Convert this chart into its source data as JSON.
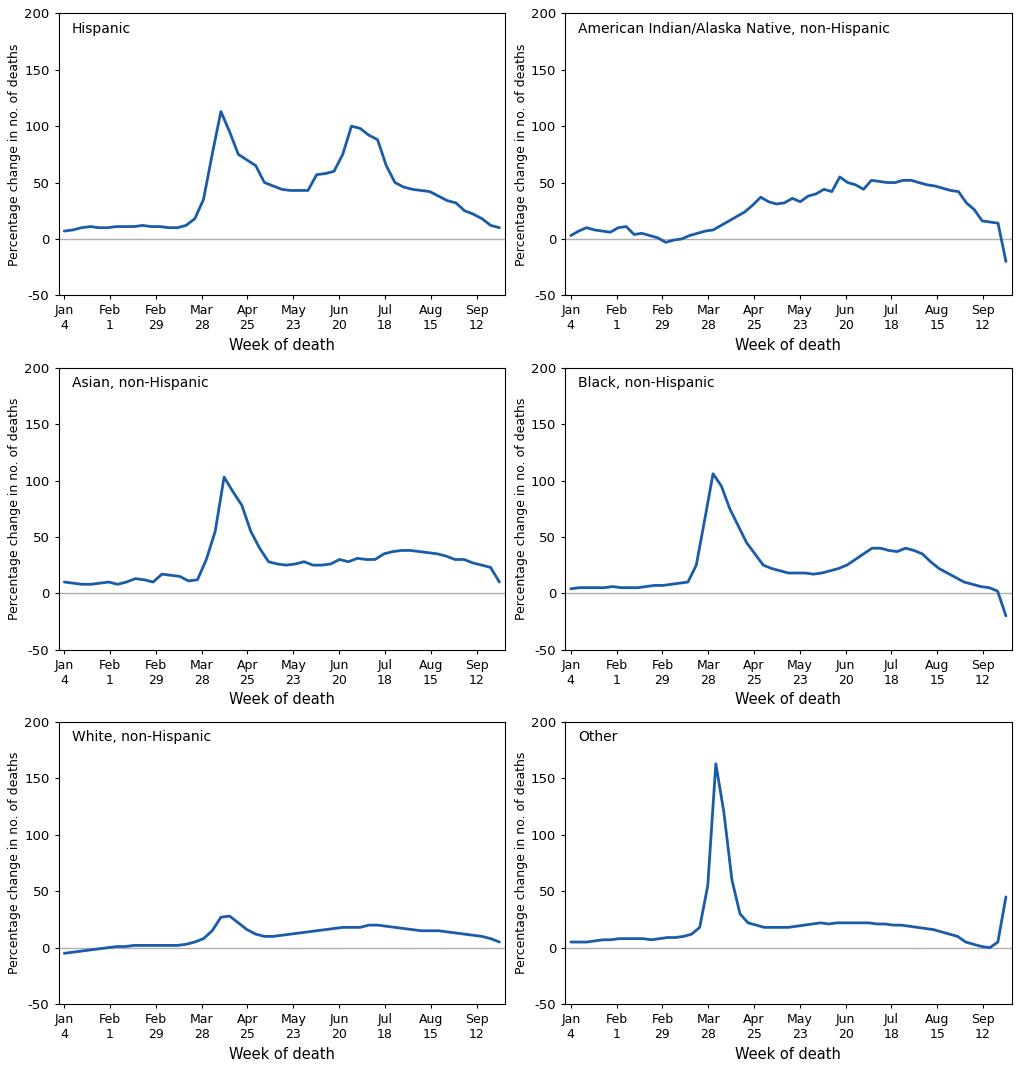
{
  "titles": [
    "Hispanic",
    "American Indian/Alaska Native, non-Hispanic",
    "Asian, non-Hispanic",
    "Black, non-Hispanic",
    "White, non-Hispanic",
    "Other"
  ],
  "xtick_labels": [
    "Jan\n4",
    "Feb\n1",
    "Feb\n29",
    "Mar\n28",
    "Apr\n25",
    "May\n23",
    "Jun\n20",
    "Jul\n18",
    "Aug\n15",
    "Sep\n12"
  ],
  "series": {
    "hispanic": [
      7,
      8,
      10,
      11,
      10,
      10,
      11,
      11,
      11,
      12,
      11,
      11,
      10,
      10,
      12,
      18,
      35,
      75,
      113,
      95,
      75,
      70,
      65,
      50,
      47,
      44,
      43,
      43,
      43,
      57,
      58,
      60,
      75,
      100,
      98,
      92,
      88,
      65,
      50,
      46,
      44,
      43,
      42,
      38,
      34,
      32,
      25,
      22,
      18,
      12,
      10
    ],
    "ai_an": [
      3,
      7,
      10,
      8,
      7,
      6,
      10,
      11,
      4,
      5,
      3,
      1,
      -3,
      -1,
      0,
      3,
      5,
      7,
      8,
      12,
      16,
      20,
      24,
      30,
      37,
      33,
      31,
      32,
      36,
      33,
      38,
      40,
      44,
      42,
      55,
      50,
      48,
      44,
      52,
      51,
      50,
      50,
      52,
      52,
      50,
      48,
      47,
      45,
      43,
      42,
      32,
      26,
      16,
      15,
      14,
      -20
    ],
    "asian": [
      10,
      9,
      8,
      8,
      9,
      10,
      8,
      10,
      13,
      12,
      10,
      17,
      16,
      15,
      11,
      12,
      30,
      55,
      103,
      90,
      78,
      55,
      40,
      28,
      26,
      25,
      26,
      28,
      25,
      25,
      26,
      30,
      28,
      31,
      30,
      30,
      35,
      37,
      38,
      38,
      37,
      36,
      35,
      33,
      30,
      30,
      27,
      25,
      23,
      10
    ],
    "black": [
      4,
      5,
      5,
      5,
      5,
      6,
      5,
      5,
      5,
      6,
      7,
      7,
      8,
      9,
      10,
      25,
      65,
      106,
      95,
      75,
      60,
      45,
      35,
      25,
      22,
      20,
      18,
      18,
      18,
      17,
      18,
      20,
      22,
      25,
      30,
      35,
      40,
      40,
      38,
      37,
      40,
      38,
      35,
      28,
      22,
      18,
      14,
      10,
      8,
      6,
      5,
      2,
      -20
    ],
    "white": [
      -5,
      -4,
      -3,
      -2,
      -1,
      0,
      1,
      1,
      2,
      2,
      2,
      2,
      2,
      2,
      3,
      5,
      8,
      15,
      27,
      28,
      22,
      16,
      12,
      10,
      10,
      11,
      12,
      13,
      14,
      15,
      16,
      17,
      18,
      18,
      18,
      20,
      20,
      19,
      18,
      17,
      16,
      15,
      15,
      15,
      14,
      13,
      12,
      11,
      10,
      8,
      5
    ],
    "other": [
      5,
      5,
      5,
      6,
      7,
      7,
      8,
      8,
      8,
      8,
      7,
      8,
      9,
      9,
      10,
      12,
      18,
      55,
      163,
      120,
      60,
      30,
      22,
      20,
      18,
      18,
      18,
      18,
      19,
      20,
      21,
      22,
      21,
      22,
      22,
      22,
      22,
      22,
      21,
      21,
      20,
      20,
      19,
      18,
      17,
      16,
      14,
      12,
      10,
      5,
      3,
      1,
      0,
      5,
      45
    ]
  },
  "ylim": [
    -50,
    200
  ],
  "yticks": [
    -50,
    0,
    50,
    100,
    150,
    200
  ],
  "line_color": "#1a5ca8",
  "zero_line_color": "#b0b0b0",
  "ylabel": "Percentage change in no. of deaths",
  "xlabel": "Week of death",
  "line_width": 2.0
}
